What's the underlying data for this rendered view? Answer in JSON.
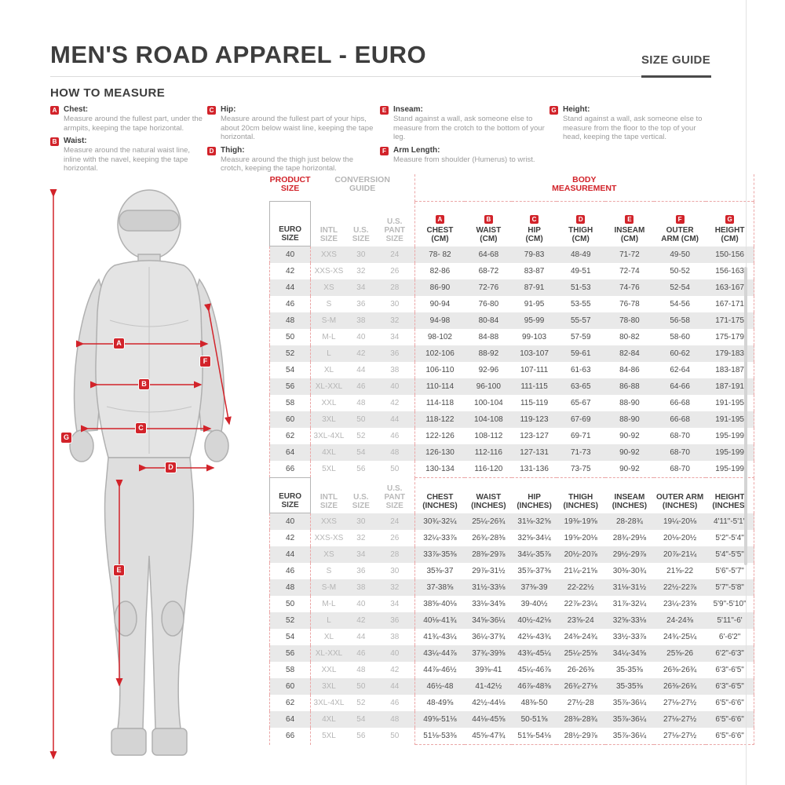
{
  "page": {
    "title": "MEN'S ROAD APPAREL - EURO",
    "size_guide_label": "SIZE GUIDE"
  },
  "how_to_measure": {
    "heading": "HOW TO MEASURE",
    "items": [
      {
        "letter": "A",
        "title": "Chest:",
        "text": "Measure around the fullest part, under the armpits, keeping the tape horizontal."
      },
      {
        "letter": "B",
        "title": "Waist:",
        "text": "Measure around the natural waist line, inline with the navel, keeping the tape horizontal."
      },
      {
        "letter": "C",
        "title": "Hip:",
        "text": "Measure around the fullest part of your hips, about 20cm below waist line, keeping the tape horizontal."
      },
      {
        "letter": "D",
        "title": "Thigh:",
        "text": "Measure around the thigh just below the crotch, keeping the tape horizontal."
      },
      {
        "letter": "E",
        "title": "Inseam:",
        "text": "Stand against a wall, ask someone else to measure from the crotch to the bottom of your leg."
      },
      {
        "letter": "F",
        "title": "Arm Length:",
        "text": "Measure from shoulder (Humerus) to wrist."
      },
      {
        "letter": "G",
        "title": "Height:",
        "text": "Stand against a wall, ask someone else to measure from the floor to the top of your head, keeping the tape vertical."
      }
    ]
  },
  "figure": {
    "badges": [
      "A",
      "B",
      "C",
      "D",
      "E",
      "F",
      "G"
    ]
  },
  "table": {
    "group_header": [
      [
        "PRODUCT",
        "SIZE"
      ],
      [
        "CONVERSION",
        "GUIDE"
      ],
      [
        "BODY",
        "MEASUREMENT"
      ]
    ],
    "badges": [
      "A",
      "B",
      "C",
      "D",
      "E",
      "F",
      "G"
    ],
    "cm_header": [
      [
        "EURO",
        "SIZE"
      ],
      [
        "INTL",
        "SIZE"
      ],
      [
        "U.S.",
        "SIZE"
      ],
      [
        "U.S.",
        "PANT SIZE"
      ],
      [
        "CHEST",
        "(CM)"
      ],
      [
        "WAIST",
        "(CM)"
      ],
      [
        "HIP",
        "(CM)"
      ],
      [
        "THIGH",
        "(CM)"
      ],
      [
        "INSEAM",
        "(CM)"
      ],
      [
        "OUTER",
        "ARM (CM)"
      ],
      [
        "HEIGHT",
        "(CM)"
      ]
    ],
    "inch_header": [
      [
        "EURO",
        "SIZE"
      ],
      [
        "INTL",
        "SIZE"
      ],
      [
        "U.S.",
        "SIZE"
      ],
      [
        "U.S.",
        "PANT SIZE"
      ],
      [
        "CHEST",
        "(INCHES)"
      ],
      [
        "WAIST",
        "(INCHES)"
      ],
      [
        "HIP",
        "(INCHES)"
      ],
      [
        "THIGH",
        "(INCHES)"
      ],
      [
        "INSEAM",
        "(INCHES)"
      ],
      [
        "OUTER ARM",
        "(INCHES)"
      ],
      [
        "HEIGHT",
        "(INCHES)"
      ]
    ],
    "cm_rows": [
      [
        "40",
        "XXS",
        "30",
        "24",
        "78- 82",
        "64-68",
        "79-83",
        "48-49",
        "71-72",
        "49-50",
        "150-156"
      ],
      [
        "42",
        "XXS-XS",
        "32",
        "26",
        "82-86",
        "68-72",
        "83-87",
        "49-51",
        "72-74",
        "50-52",
        "156-163"
      ],
      [
        "44",
        "XS",
        "34",
        "28",
        "86-90",
        "72-76",
        "87-91",
        "51-53",
        "74-76",
        "52-54",
        "163-167"
      ],
      [
        "46",
        "S",
        "36",
        "30",
        "90-94",
        "76-80",
        "91-95",
        "53-55",
        "76-78",
        "54-56",
        "167-171"
      ],
      [
        "48",
        "S-M",
        "38",
        "32",
        "94-98",
        "80-84",
        "95-99",
        "55-57",
        "78-80",
        "56-58",
        "171-175"
      ],
      [
        "50",
        "M-L",
        "40",
        "34",
        "98-102",
        "84-88",
        "99-103",
        "57-59",
        "80-82",
        "58-60",
        "175-179"
      ],
      [
        "52",
        "L",
        "42",
        "36",
        "102-106",
        "88-92",
        "103-107",
        "59-61",
        "82-84",
        "60-62",
        "179-183"
      ],
      [
        "54",
        "XL",
        "44",
        "38",
        "106-110",
        "92-96",
        "107-111",
        "61-63",
        "84-86",
        "62-64",
        "183-187"
      ],
      [
        "56",
        "XL-XXL",
        "46",
        "40",
        "110-114",
        "96-100",
        "111-115",
        "63-65",
        "86-88",
        "64-66",
        "187-191"
      ],
      [
        "58",
        "XXL",
        "48",
        "42",
        "114-118",
        "100-104",
        "115-119",
        "65-67",
        "88-90",
        "66-68",
        "191-195"
      ],
      [
        "60",
        "3XL",
        "50",
        "44",
        "118-122",
        "104-108",
        "119-123",
        "67-69",
        "88-90",
        "66-68",
        "191-195"
      ],
      [
        "62",
        "3XL-4XL",
        "52",
        "46",
        "122-126",
        "108-112",
        "123-127",
        "69-71",
        "90-92",
        "68-70",
        "195-199"
      ],
      [
        "64",
        "4XL",
        "54",
        "48",
        "126-130",
        "112-116",
        "127-131",
        "71-73",
        "90-92",
        "68-70",
        "195-199"
      ],
      [
        "66",
        "5XL",
        "56",
        "50",
        "130-134",
        "116-120",
        "131-136",
        "73-75",
        "90-92",
        "68-70",
        "195-199"
      ]
    ],
    "inch_rows": [
      [
        "40",
        "XXS",
        "30",
        "24",
        "30¾-32¼",
        "25¼-26¾",
        "31⅛-32⅝",
        "19⅜-19⅝",
        "28-28¾",
        "19¼-20⅛",
        "4'11\"-5'1\""
      ],
      [
        "42",
        "XXS-XS",
        "32",
        "26",
        "32¼-33⅞",
        "26¾-28⅜",
        "32⅝-34¼",
        "19⅝-20⅛",
        "28¾-29⅛",
        "20⅛-20½",
        "5'2\"-5'4\""
      ],
      [
        "44",
        "XS",
        "34",
        "28",
        "33⅞-35⅜",
        "28⅜-29⅞",
        "34¼-35⅞",
        "20½-20⅞",
        "29½-29⅞",
        "20⅞-21¼",
        "5'4\"-5'5\""
      ],
      [
        "46",
        "S",
        "36",
        "30",
        "35⅜-37",
        "29⅞-31½",
        "35⅞-37⅜",
        "21¼-21⅝",
        "30⅜-30¾",
        "21⅝-22",
        "5'6\"-5'7\""
      ],
      [
        "48",
        "S-M",
        "38",
        "32",
        "37-38⅝",
        "31½-33⅛",
        "37⅜-39",
        "22-22½",
        "31⅛-31½",
        "22½-22⅞",
        "5'7\"-5'8\""
      ],
      [
        "50",
        "M-L",
        "40",
        "34",
        "38⅝-40⅛",
        "33⅛-34⅝",
        "39-40½",
        "22⅞-23¼",
        "31⅞-32¼",
        "23¼-23⅝",
        "5'9\"-5'10\""
      ],
      [
        "52",
        "L",
        "42",
        "36",
        "40⅛-41¾",
        "34⅝-36¼",
        "40½-42⅛",
        "23⅝-24",
        "32⅝-33⅛",
        "24-24⅜",
        "5'11\"-6'"
      ],
      [
        "54",
        "XL",
        "44",
        "38",
        "41¾-43¼",
        "36¼-37¾",
        "42⅛-43¾",
        "24⅜-24¾",
        "33½-33⅞",
        "24¾-25¼",
        "6'-6'2\""
      ],
      [
        "56",
        "XL-XXL",
        "46",
        "40",
        "43¼-44⅞",
        "37¾-39⅜",
        "43¾-45¼",
        "25¼-25⅝",
        "34¼-34⅝",
        "25⅝-26",
        "6'2\"-6'3\""
      ],
      [
        "58",
        "XXL",
        "48",
        "42",
        "44⅞-46½",
        "39⅜-41",
        "45¼-46⅞",
        "26-26⅜",
        "35-35⅜",
        "26⅜-26¾",
        "6'3\"-6'5\""
      ],
      [
        "60",
        "3XL",
        "50",
        "44",
        "46½-48",
        "41-42½",
        "46⅞-48⅜",
        "26¾-27⅛",
        "35-35⅜",
        "26⅜-26¾",
        "6'3\"-6'5\""
      ],
      [
        "62",
        "3XL-4XL",
        "52",
        "46",
        "48-49⅝",
        "42½-44⅛",
        "48⅜-50",
        "27½-28",
        "35⅞-36¼",
        "27⅛-27½",
        "6'5\"-6'6\""
      ],
      [
        "64",
        "4XL",
        "54",
        "48",
        "49⅝-51⅛",
        "44⅛-45⅝",
        "50-51⅝",
        "28⅜-28¾",
        "35⅞-36¼",
        "27⅛-27½",
        "6'5\"-6'6\""
      ],
      [
        "66",
        "5XL",
        "56",
        "50",
        "51⅛-53⅜",
        "45⅝-47¾",
        "51⅝-54⅛",
        "28½-29⅞",
        "35⅞-36¼",
        "27⅛-27½",
        "6'5\"-6'6\""
      ]
    ]
  },
  "colors": {
    "accent_red": "#d2232a",
    "muted_gray": "#b5b5b5",
    "stripe_gray": "#e9e9e9",
    "text_dark": "#3d3d3d"
  }
}
